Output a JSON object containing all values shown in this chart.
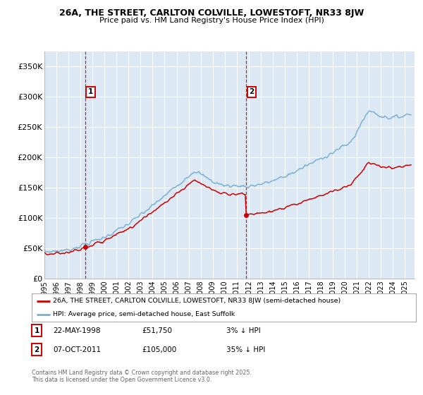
{
  "title_line1": "26A, THE STREET, CARLTON COLVILLE, LOWESTOFT, NR33 8JW",
  "title_line2": "Price paid vs. HM Land Registry's House Price Index (HPI)",
  "bg_color": "#dce9f5",
  "grid_color": "#ffffff",
  "ylim": [
    0,
    375000
  ],
  "yticks": [
    0,
    50000,
    100000,
    150000,
    200000,
    250000,
    300000,
    350000
  ],
  "ytick_labels": [
    "£0",
    "£50K",
    "£100K",
    "£150K",
    "£200K",
    "£250K",
    "£300K",
    "£350K"
  ],
  "sale1_date": 1998.38,
  "sale1_price": 51750,
  "sale2_date": 2011.77,
  "sale2_price": 105000,
  "legend_property": "26A, THE STREET, CARLTON COLVILLE, LOWESTOFT, NR33 8JW (semi-detached house)",
  "legend_hpi": "HPI: Average price, semi-detached house, East Suffolk",
  "footer1": "Contains HM Land Registry data © Crown copyright and database right 2025.",
  "footer2": "This data is licensed under the Open Government Licence v3.0.",
  "annotation1_label": "1",
  "annotation1_date": "22-MAY-1998",
  "annotation1_price": "£51,750",
  "annotation1_hpi": "3% ↓ HPI",
  "annotation2_label": "2",
  "annotation2_date": "07-OCT-2011",
  "annotation2_price": "£105,000",
  "annotation2_hpi": "35% ↓ HPI",
  "line_color_property": "#cc0000",
  "line_color_hpi": "#7ab0d4",
  "dashed_line_color": "#cc0000"
}
